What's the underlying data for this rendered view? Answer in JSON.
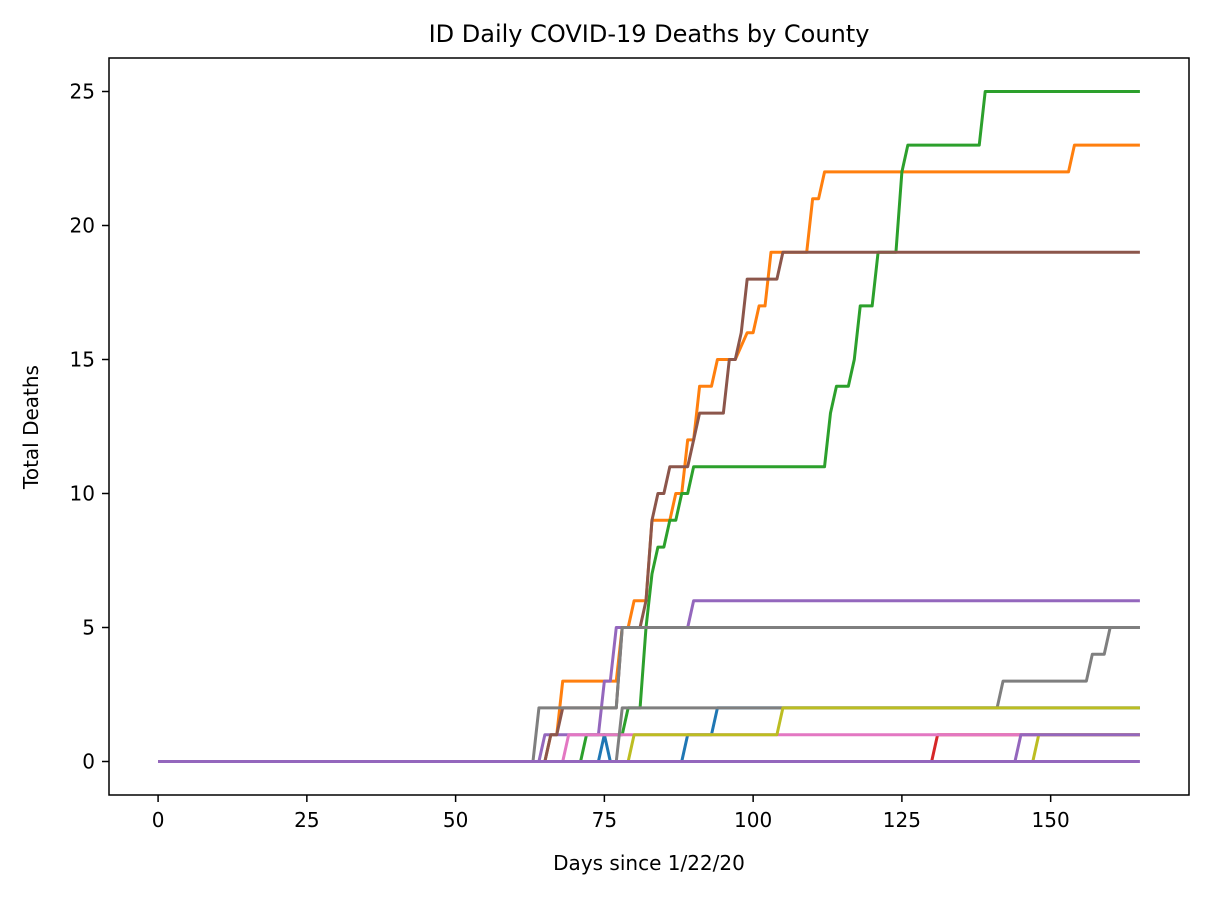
{
  "chart_data": {
    "type": "line",
    "title": "ID Daily COVID-19 Deaths by County",
    "xlabel": "Days since 1/22/20",
    "ylabel": "Total Deaths",
    "xlim": [
      -8.25,
      173.25
    ],
    "ylim": [
      -1.25,
      26.25
    ],
    "xticks": [
      0,
      25,
      50,
      75,
      100,
      125,
      150
    ],
    "yticks": [
      0,
      5,
      10,
      15,
      20,
      25
    ],
    "grid": false,
    "legend": "none",
    "series": [
      {
        "color": "#1f77b4",
        "points": [
          [
            0,
            0
          ],
          [
            74,
            0
          ],
          [
            75,
            1
          ],
          [
            76,
            0
          ],
          [
            88,
            0
          ],
          [
            89,
            1
          ],
          [
            93,
            1
          ],
          [
            94,
            2
          ],
          [
            165,
            2
          ]
        ]
      },
      {
        "color": "#ff7f0e",
        "points": [
          [
            0,
            0
          ],
          [
            65,
            0
          ],
          [
            66,
            1
          ],
          [
            67,
            1
          ],
          [
            68,
            3
          ],
          [
            77,
            3
          ],
          [
            78,
            5
          ],
          [
            79,
            5
          ],
          [
            80,
            6
          ],
          [
            82,
            6
          ],
          [
            83,
            9
          ],
          [
            86,
            9
          ],
          [
            87,
            10
          ],
          [
            88,
            10
          ],
          [
            89,
            12
          ],
          [
            90,
            12
          ],
          [
            91,
            14
          ],
          [
            93,
            14
          ],
          [
            94,
            15
          ],
          [
            96,
            15
          ],
          [
            97,
            15
          ],
          [
            99,
            16
          ],
          [
            100,
            16
          ],
          [
            101,
            17
          ],
          [
            102,
            17
          ],
          [
            103,
            19
          ],
          [
            109,
            19
          ],
          [
            110,
            21
          ],
          [
            111,
            21
          ],
          [
            112,
            22
          ],
          [
            153,
            22
          ],
          [
            154,
            23
          ],
          [
            165,
            23
          ]
        ]
      },
      {
        "color": "#2ca02c",
        "points": [
          [
            0,
            0
          ],
          [
            71,
            0
          ],
          [
            72,
            1
          ],
          [
            78,
            1
          ],
          [
            79,
            2
          ],
          [
            81,
            2
          ],
          [
            82,
            5
          ],
          [
            83,
            7
          ],
          [
            84,
            8
          ],
          [
            85,
            8
          ],
          [
            86,
            9
          ],
          [
            87,
            9
          ],
          [
            88,
            10
          ],
          [
            89,
            10
          ],
          [
            90,
            11
          ],
          [
            112,
            11
          ],
          [
            113,
            13
          ],
          [
            114,
            14
          ],
          [
            116,
            14
          ],
          [
            117,
            15
          ],
          [
            118,
            17
          ],
          [
            120,
            17
          ],
          [
            121,
            19
          ],
          [
            124,
            19
          ],
          [
            125,
            22
          ],
          [
            126,
            23
          ],
          [
            138,
            23
          ],
          [
            139,
            25
          ],
          [
            165,
            25
          ]
        ]
      },
      {
        "color": "#d62728",
        "points": [
          [
            0,
            0
          ],
          [
            130,
            0
          ],
          [
            131,
            1
          ],
          [
            165,
            1
          ]
        ]
      },
      {
        "color": "#9467bd",
        "points": [
          [
            0,
            0
          ],
          [
            64,
            0
          ],
          [
            65,
            1
          ],
          [
            74,
            1
          ],
          [
            75,
            3
          ],
          [
            76,
            3
          ],
          [
            77,
            5
          ],
          [
            89,
            5
          ],
          [
            90,
            6
          ],
          [
            165,
            6
          ]
        ]
      },
      {
        "color": "#8c564b",
        "points": [
          [
            0,
            0
          ],
          [
            65,
            0
          ],
          [
            66,
            1
          ],
          [
            67,
            1
          ],
          [
            68,
            2
          ],
          [
            77,
            2
          ],
          [
            78,
            5
          ],
          [
            81,
            5
          ],
          [
            82,
            6
          ],
          [
            83,
            9
          ],
          [
            84,
            10
          ],
          [
            85,
            10
          ],
          [
            86,
            11
          ],
          [
            89,
            11
          ],
          [
            90,
            12
          ],
          [
            91,
            13
          ],
          [
            95,
            13
          ],
          [
            96,
            15
          ],
          [
            97,
            15
          ],
          [
            98,
            16
          ],
          [
            99,
            18
          ],
          [
            104,
            18
          ],
          [
            105,
            19
          ],
          [
            165,
            19
          ]
        ]
      },
      {
        "color": "#e377c2",
        "points": [
          [
            0,
            0
          ],
          [
            68,
            0
          ],
          [
            69,
            1
          ],
          [
            165,
            1
          ]
        ]
      },
      {
        "color": "#7f7f7f",
        "points": [
          [
            0,
            0
          ],
          [
            63,
            0
          ],
          [
            64,
            2
          ],
          [
            77,
            2
          ],
          [
            78,
            5
          ],
          [
            165,
            5
          ]
        ]
      },
      {
        "color": "#7f7f7f",
        "points": [
          [
            0,
            0
          ],
          [
            77,
            0
          ],
          [
            78,
            2
          ],
          [
            141,
            2
          ],
          [
            142,
            3
          ],
          [
            156,
            3
          ],
          [
            157,
            4
          ],
          [
            159,
            4
          ],
          [
            160,
            5
          ],
          [
            165,
            5
          ]
        ]
      },
      {
        "color": "#bcbd22",
        "points": [
          [
            0,
            0
          ],
          [
            79,
            0
          ],
          [
            80,
            1
          ],
          [
            104,
            1
          ],
          [
            105,
            2
          ],
          [
            165,
            2
          ]
        ]
      },
      {
        "color": "#bcbd22",
        "points": [
          [
            0,
            0
          ],
          [
            147,
            0
          ],
          [
            148,
            1
          ],
          [
            165,
            1
          ]
        ]
      },
      {
        "color": "#9467bd",
        "points": [
          [
            0,
            0
          ],
          [
            144,
            0
          ],
          [
            145,
            1
          ],
          [
            165,
            1
          ]
        ]
      },
      {
        "color": "#9467bd",
        "points": [
          [
            0,
            0
          ],
          [
            165,
            0
          ]
        ]
      }
    ]
  }
}
